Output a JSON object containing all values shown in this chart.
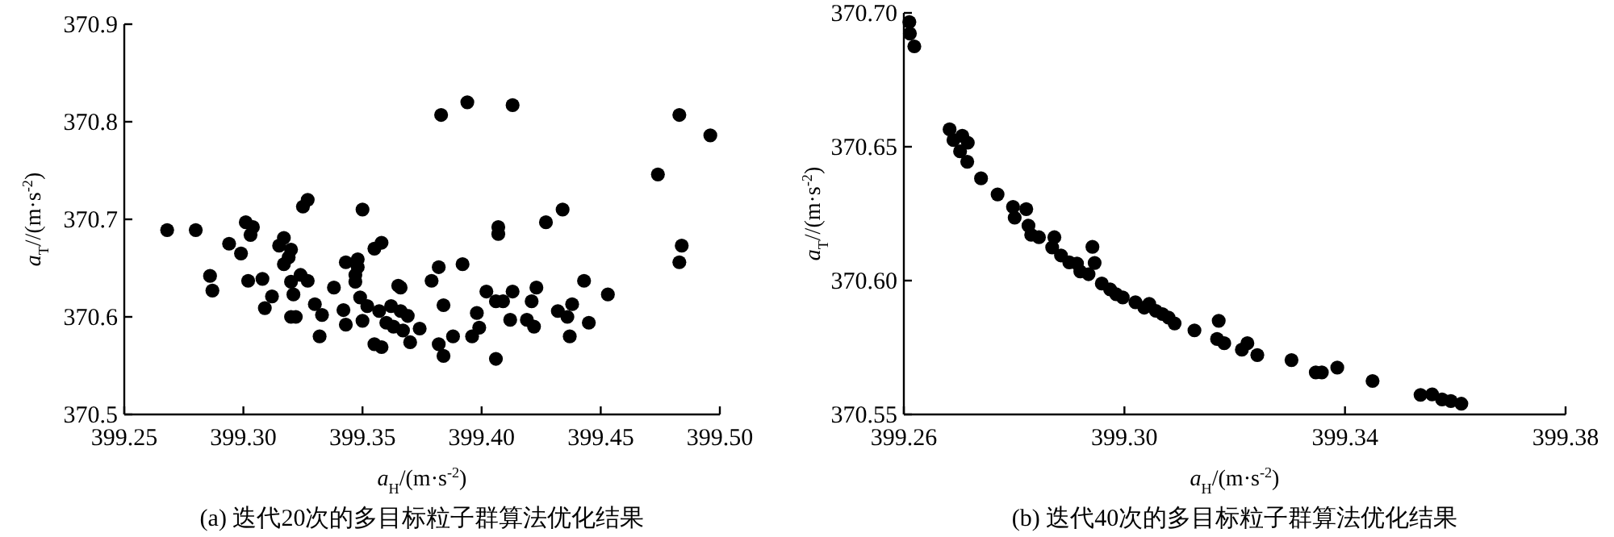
{
  "chart_data": [
    {
      "type": "scatter",
      "title": "(a) 迭代20次的多目标粒子群算法优化结果",
      "xlabel": "*a*$_{H}$/(m·s$^{-2}$)",
      "ylabel": "*a*$_{T}$//(m·s$^{-2}$)",
      "marker": "circle",
      "xlim": [
        399.25,
        399.5
      ],
      "ylim": [
        370.5,
        370.9
      ],
      "xticks": [
        399.25,
        {
          "value": 399.3,
          "label": "399.30"
        },
        399.35,
        {
          "value": 399.4,
          "label": "399.40"
        },
        399.45,
        {
          "value": 399.5,
          "label": "399.50"
        }
      ],
      "yticks": [
        370.5,
        370.6,
        370.7,
        370.8,
        370.9
      ],
      "series": [
        {
          "color": "#000000",
          "x": [
            399.268,
            399.28,
            399.286,
            399.287,
            399.294,
            399.299,
            399.301,
            399.304,
            399.303,
            399.302,
            399.308,
            399.309,
            399.312,
            399.315,
            399.317,
            399.317,
            399.319,
            399.32,
            399.32,
            399.321,
            399.32,
            399.322,
            399.324,
            399.327,
            399.325,
            399.327,
            399.33,
            399.333,
            399.332,
            399.338,
            399.342,
            399.343,
            399.343,
            399.348,
            399.348,
            399.347,
            399.347,
            399.349,
            399.35,
            399.35,
            399.352,
            399.355,
            399.358,
            399.357,
            399.355,
            399.358,
            399.36,
            399.362,
            399.363,
            399.365,
            399.366,
            399.366,
            399.367,
            399.369,
            399.37,
            399.374,
            399.379,
            399.382,
            399.382,
            399.384,
            399.384,
            399.383,
            399.388,
            399.392,
            399.394,
            399.396,
            399.398,
            399.399,
            399.402,
            399.406,
            399.406,
            399.409,
            399.407,
            399.407,
            399.412,
            399.413,
            399.413,
            399.419,
            399.421,
            399.422,
            399.423,
            399.427,
            399.432,
            399.434,
            399.436,
            399.438,
            399.437,
            399.443,
            399.445,
            399.453,
            399.474,
            399.483,
            399.484,
            399.483,
            399.496
          ],
          "values": [
            370.689,
            370.689,
            370.642,
            370.627,
            370.675,
            370.665,
            370.697,
            370.692,
            370.684,
            370.637,
            370.639,
            370.609,
            370.621,
            370.673,
            370.681,
            370.654,
            370.661,
            370.669,
            370.636,
            370.623,
            370.6,
            370.6,
            370.643,
            370.637,
            370.713,
            370.72,
            370.613,
            370.602,
            370.58,
            370.63,
            370.607,
            370.592,
            370.656,
            370.659,
            370.651,
            370.643,
            370.636,
            370.62,
            370.596,
            370.71,
            370.611,
            370.67,
            370.676,
            370.606,
            370.572,
            370.569,
            370.594,
            370.611,
            370.59,
            370.632,
            370.63,
            370.606,
            370.586,
            370.601,
            370.574,
            370.588,
            370.637,
            370.651,
            370.572,
            370.612,
            370.56,
            370.807,
            370.58,
            370.654,
            370.82,
            370.58,
            370.604,
            370.589,
            370.626,
            370.557,
            370.616,
            370.616,
            370.692,
            370.685,
            370.597,
            370.817,
            370.626,
            370.597,
            370.616,
            370.59,
            370.63,
            370.697,
            370.606,
            370.71,
            370.6,
            370.613,
            370.58,
            370.637,
            370.594,
            370.623,
            370.746,
            370.807,
            370.673,
            370.656,
            370.786
          ]
        }
      ]
    },
    {
      "type": "scatter",
      "title": "(b) 迭代40次的多目标粒子群算法优化结果",
      "xlabel": "*a*$_{H}$/(m·s$^{-2}$)",
      "ylabel": "*a*$_{T}$//(m·s$^{-2}$)",
      "marker": "circle",
      "xlim": [
        399.26,
        399.38
      ],
      "ylim": [
        370.55,
        370.7
      ],
      "xticks": [
        399.26,
        {
          "value": 399.3,
          "label": "399.30"
        },
        399.34,
        399.38
      ],
      "yticks": [
        370.55,
        {
          "value": 370.6,
          "label": "370.60"
        },
        370.65,
        {
          "value": 370.7,
          "label": "370.70"
        }
      ],
      "series": [
        {
          "color": "#000000",
          "x": [
            399.261,
            399.2611,
            399.2619,
            399.2683,
            399.269,
            399.2706,
            399.2702,
            399.2716,
            399.2715,
            399.274,
            399.277,
            399.2798,
            399.2801,
            399.2822,
            399.2826,
            399.2831,
            399.2845,
            399.2873,
            399.2869,
            399.2885,
            399.29,
            399.2914,
            399.292,
            399.2935,
            399.2942,
            399.2946,
            399.2959,
            399.2974,
            399.2985,
            399.2997,
            399.302,
            399.3036,
            399.3045,
            399.3057,
            399.3069,
            399.308,
            399.3091,
            399.3127,
            399.3168,
            399.3171,
            399.3181,
            399.3213,
            399.3223,
            399.3241,
            399.3303,
            399.3347,
            399.3358,
            399.3386,
            399.345,
            399.3537,
            399.3558,
            399.3576,
            399.3592,
            399.3611
          ],
          "values": [
            370.6966,
            370.6923,
            370.6875,
            370.6565,
            370.6525,
            370.6541,
            370.6483,
            370.6515,
            370.6444,
            370.6382,
            370.6322,
            370.6275,
            370.6235,
            370.6267,
            370.6205,
            370.6171,
            370.6162,
            370.6162,
            370.6124,
            370.6094,
            370.6068,
            370.6064,
            370.6034,
            370.6024,
            370.6126,
            370.6066,
            370.5989,
            370.5967,
            370.5949,
            370.5937,
            370.5919,
            370.5899,
            370.5913,
            370.5887,
            370.5875,
            370.5862,
            370.584,
            370.5814,
            370.5782,
            370.585,
            370.5766,
            370.5742,
            370.5766,
            370.5722,
            370.5703,
            370.5657,
            370.5657,
            370.5675,
            370.5625,
            370.5573,
            370.5575,
            370.5556,
            370.555,
            370.554
          ]
        }
      ]
    }
  ]
}
